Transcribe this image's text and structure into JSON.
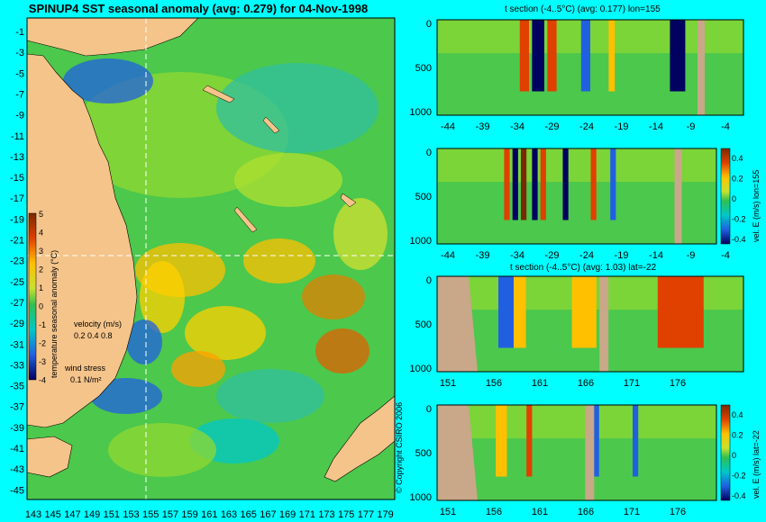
{
  "map": {
    "title": "SPINUP4 SST seasonal anomaly (avg: 0.279) for 04-Nov-1998",
    "lat_ticks": [
      "-1",
      "-3",
      "-5",
      "-7",
      "-9",
      "-11",
      "-13",
      "-15",
      "-17",
      "-19",
      "-21",
      "-23",
      "-25",
      "-27",
      "-29",
      "-31",
      "-33",
      "-35",
      "-37",
      "-39",
      "-41",
      "-43",
      "-45"
    ],
    "lon_ticks": [
      "143",
      "145",
      "147",
      "149",
      "151",
      "153",
      "155",
      "157",
      "159",
      "161",
      "163",
      "165",
      "167",
      "169",
      "171",
      "173",
      "175",
      "177",
      "179"
    ],
    "colorbar": {
      "title": "temperature seasonal anomaly (°C)",
      "ticks": [
        "5",
        "4",
        "3",
        "2",
        "1",
        "0",
        "-1",
        "-2",
        "-3",
        "-4"
      ]
    },
    "velocity_legend": {
      "title": "velocity (m/s)",
      "values": "0.2 0.4 0.8"
    },
    "wind_legend": {
      "title": "wind stress",
      "value": "0.1 N/m²"
    },
    "copyright": "© Copyright CSIRO 2006"
  },
  "panels": [
    {
      "id": "p1",
      "title": "t section (-4..5°C) (avg: 0.177) lon=155",
      "xticks": [
        "-44",
        "-39",
        "-34",
        "-29",
        "-24",
        "-19",
        "-14",
        "-9",
        "-4"
      ],
      "yticks": [
        "0",
        "500",
        "1000"
      ]
    },
    {
      "id": "p2",
      "title": "",
      "side_label": "vel. E (m/s) lon=155",
      "cbar_ticks": [
        "0.4",
        "0.2",
        "0",
        "-0.2",
        "-0.4"
      ],
      "xticks": [
        "-44",
        "-39",
        "-34",
        "-29",
        "-24",
        "-19",
        "-14",
        "-9",
        "-4"
      ],
      "yticks": [
        "0",
        "500",
        "1000"
      ]
    },
    {
      "id": "p3",
      "title": "t section (-4..5°C) (avg: 1.03) lat=-22",
      "xticks": [
        "151",
        "156",
        "161",
        "166",
        "171",
        "176"
      ],
      "yticks": [
        "0",
        "500",
        "1000"
      ]
    },
    {
      "id": "p4",
      "title": "",
      "side_label": "vel. E (m/s) lat=-22",
      "cbar_ticks": [
        "0.4",
        "0.2",
        "0",
        "-0.2",
        "-0.4"
      ],
      "xticks": [
        "151",
        "156",
        "161",
        "166",
        "171",
        "176"
      ],
      "yticks": [
        "0",
        "500",
        "1000"
      ]
    }
  ],
  "colors": {
    "background": "#00ffff",
    "land": "#f5c48a",
    "section_land": "#c8a888",
    "ocean_base": "#4cc84c"
  }
}
